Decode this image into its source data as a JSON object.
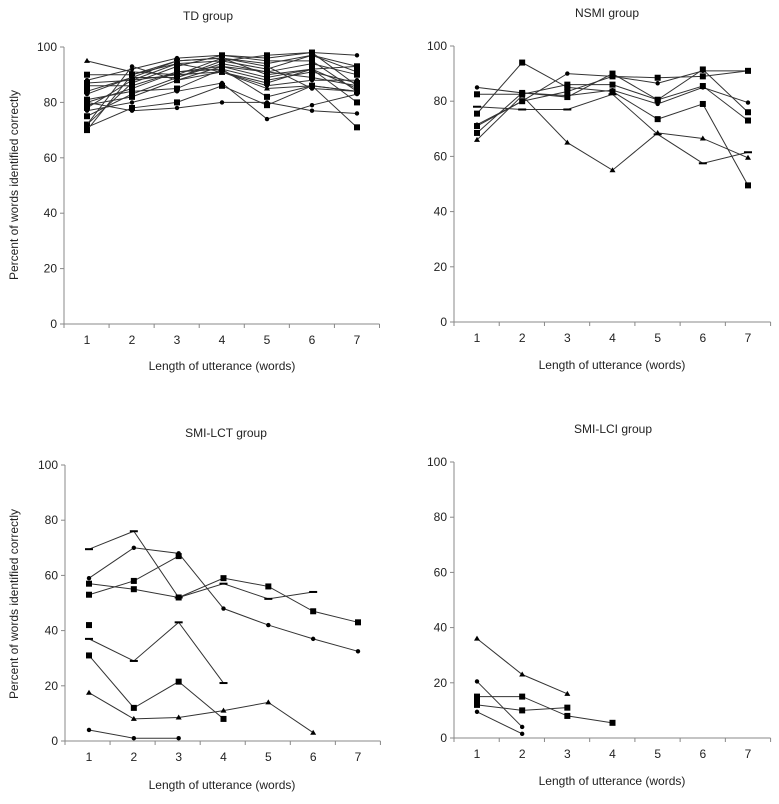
{
  "chart_data": [
    {
      "type": "line",
      "title": "TD group",
      "xlabel": "Length of utterance (words)",
      "ylabel": "Percent of words identified correctly",
      "x": [
        1,
        2,
        3,
        4,
        5,
        6,
        7
      ],
      "yticks": [
        0,
        20,
        40,
        60,
        80,
        100
      ],
      "ylim": [
        0,
        100
      ],
      "grid": false,
      "series": [
        {
          "marker": "triangle",
          "values": [
            95,
            91,
            90,
            91,
            85,
            86,
            84
          ]
        },
        {
          "marker": "square",
          "values": [
            90,
            90,
            95,
            96,
            90,
            92,
            93
          ]
        },
        {
          "marker": "dot",
          "values": [
            88,
            92,
            96,
            97,
            96,
            98,
            97
          ]
        },
        {
          "marker": "square",
          "values": [
            87,
            88,
            94,
            95,
            92,
            97,
            91
          ]
        },
        {
          "marker": "square",
          "values": [
            86,
            86,
            91,
            92,
            88,
            91,
            87
          ]
        },
        {
          "marker": "square",
          "values": [
            84,
            89,
            89,
            95,
            97,
            98,
            86
          ]
        },
        {
          "marker": "square",
          "values": [
            81,
            84,
            85,
            92,
            82,
            86,
            84
          ]
        },
        {
          "marker": "dot",
          "values": [
            80,
            77,
            78,
            80,
            80,
            77,
            76
          ]
        },
        {
          "marker": "square",
          "values": [
            79,
            82,
            88,
            93,
            89,
            92,
            80
          ]
        },
        {
          "marker": "square",
          "values": [
            78,
            88,
            90,
            96,
            94,
            97,
            93
          ]
        },
        {
          "marker": "dot",
          "values": [
            77,
            80,
            84,
            87,
            74,
            79,
            83
          ]
        },
        {
          "marker": "square",
          "values": [
            75,
            83,
            89,
            94,
            91,
            89,
            86
          ]
        },
        {
          "marker": "square",
          "values": [
            72,
            87,
            93,
            97,
            95,
            95,
            84
          ]
        },
        {
          "marker": "square",
          "values": [
            71,
            78,
            80,
            86,
            79,
            86,
            71
          ]
        },
        {
          "marker": "square",
          "values": [
            70,
            90,
            94,
            91,
            87,
            92,
            85
          ]
        },
        {
          "marker": "dot",
          "values": [
            72,
            93,
            88,
            91,
            86,
            88,
            88
          ]
        },
        {
          "marker": "square",
          "values": [
            80,
            85,
            91,
            93,
            91,
            94,
            90
          ]
        },
        {
          "marker": "dot",
          "values": [
            83,
            89,
            95,
            96,
            93,
            85,
            84
          ]
        }
      ]
    },
    {
      "type": "line",
      "title": "NSMI group",
      "xlabel": "Length of utterance (words)",
      "ylabel": "",
      "x": [
        1,
        2,
        3,
        4,
        5,
        6,
        7
      ],
      "yticks": [
        0,
        20,
        40,
        60,
        80,
        100
      ],
      "ylim": [
        0,
        100
      ],
      "grid": false,
      "series": [
        {
          "marker": "dot",
          "values": [
            85,
            83,
            82,
            84,
            79,
            85,
            79.5
          ]
        },
        {
          "marker": "square",
          "values": [
            82.5,
            82.5,
            86,
            86,
            80.5,
            85.5,
            73
          ]
        },
        {
          "marker": "square",
          "values": [
            75.5,
            94,
            85,
            83.5,
            73.5,
            79,
            49.5
          ]
        },
        {
          "marker": "dash",
          "values": [
            78,
            77,
            77,
            82.5,
            68,
            57.5,
            61.5
          ]
        },
        {
          "marker": "dot",
          "values": [
            71.5,
            80,
            90,
            89,
            86.5,
            91,
            91
          ]
        },
        {
          "marker": "square",
          "values": [
            71,
            80,
            83.5,
            89,
            88.5,
            89,
            91
          ]
        },
        {
          "marker": "square",
          "values": [
            68.5,
            83,
            81.5,
            90,
            80.5,
            91.5,
            76
          ]
        },
        {
          "marker": "triangle",
          "values": [
            66,
            82,
            65,
            55,
            68.5,
            66.5,
            59.5
          ]
        }
      ]
    },
    {
      "type": "line",
      "title": "SMI-LCT group",
      "xlabel": "Length of utterance (words)",
      "ylabel": "Percent of words identified correctly",
      "x": [
        1,
        2,
        3,
        4,
        5,
        6,
        7
      ],
      "yticks": [
        0,
        20,
        40,
        60,
        80,
        100
      ],
      "ylim": [
        0,
        100
      ],
      "grid": false,
      "series": [
        {
          "marker": "dash",
          "values": [
            69.5,
            76,
            52,
            57,
            51.5,
            54,
            null
          ]
        },
        {
          "marker": "dot",
          "values": [
            59,
            70,
            68,
            48,
            42,
            37,
            32.5
          ]
        },
        {
          "marker": "square",
          "values": [
            53,
            58,
            67,
            null,
            null,
            null,
            null
          ]
        },
        {
          "marker": "square",
          "values": [
            57,
            55,
            52,
            59,
            56,
            47,
            43
          ]
        },
        {
          "marker": "square",
          "values": [
            42,
            null,
            null,
            null,
            null,
            null,
            null
          ]
        },
        {
          "marker": "dash",
          "values": [
            37,
            29,
            43,
            21,
            null,
            null,
            null
          ]
        },
        {
          "marker": "square",
          "values": [
            31,
            12,
            21.5,
            8,
            null,
            null,
            null
          ]
        },
        {
          "marker": "triangle",
          "values": [
            17.5,
            8,
            8.5,
            11,
            14,
            3,
            null
          ]
        },
        {
          "marker": "dot",
          "values": [
            4,
            1,
            1,
            null,
            null,
            null,
            null
          ]
        }
      ]
    },
    {
      "type": "line",
      "title": "SMI-LCI group",
      "xlabel": "Length of utterance (words)",
      "ylabel": "",
      "x": [
        1,
        2,
        3,
        4,
        5,
        6,
        7
      ],
      "yticks": [
        0,
        20,
        40,
        60,
        80,
        100
      ],
      "ylim": [
        0,
        100
      ],
      "grid": false,
      "series": [
        {
          "marker": "triangle",
          "values": [
            36,
            23,
            16,
            null,
            null,
            null,
            null
          ]
        },
        {
          "marker": "dot",
          "values": [
            20.5,
            4,
            null,
            null,
            null,
            null,
            null
          ]
        },
        {
          "marker": "square",
          "values": [
            15,
            15,
            8,
            5.5,
            null,
            null,
            null
          ]
        },
        {
          "marker": "square",
          "values": [
            13,
            null,
            null,
            null,
            null,
            null,
            null
          ]
        },
        {
          "marker": "square",
          "values": [
            12,
            10,
            11,
            null,
            null,
            null,
            null
          ]
        },
        {
          "marker": "dot",
          "values": [
            9.5,
            1.5,
            null,
            null,
            null,
            null,
            null
          ]
        }
      ]
    }
  ]
}
